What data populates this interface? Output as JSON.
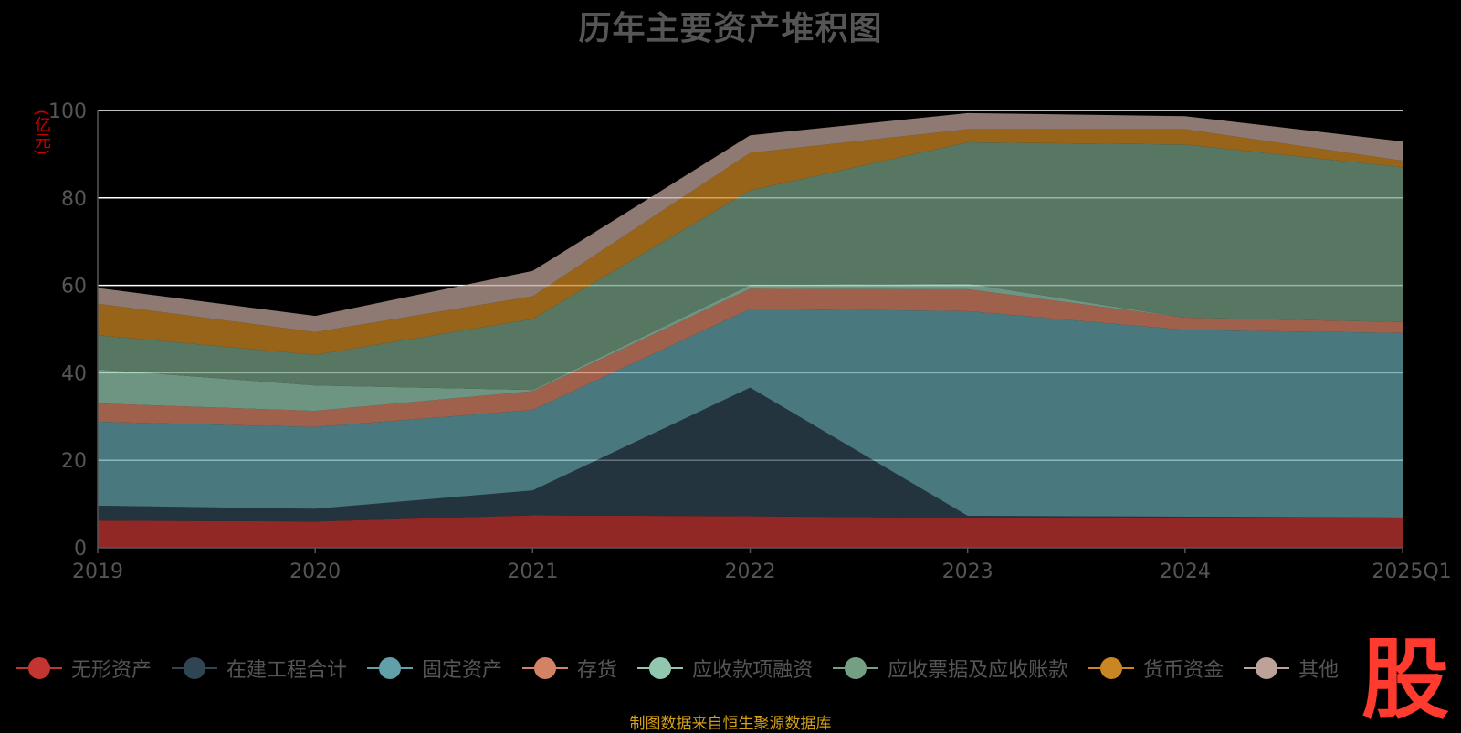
{
  "title": "历年主要资产堆积图",
  "unit_label": "(亿元)",
  "source_note": "制图数据来自恒生聚源数据库",
  "logo_text": "股",
  "chart_data": {
    "type": "area",
    "stacked": true,
    "title": "历年主要资产堆积图",
    "ylabel": "(亿元)",
    "x": [
      "2019",
      "2020",
      "2021",
      "2022",
      "2023",
      "2024",
      "2025Q1"
    ],
    "ylim": [
      0,
      100
    ],
    "yticks": [
      0,
      20,
      40,
      60,
      80,
      100
    ],
    "grid": true,
    "legend_position": "bottom",
    "series": [
      {
        "name": "无形资产",
        "color": "#c23531",
        "values": [
          6.2,
          6.0,
          7.4,
          7.2,
          6.8,
          6.7,
          6.7
        ]
      },
      {
        "name": "在建工程合计",
        "color": "#2f4554",
        "values": [
          3.4,
          2.9,
          5.7,
          29.4,
          0.5,
          0.4,
          0.2
        ]
      },
      {
        "name": "固定资产",
        "color": "#61a0a8",
        "values": [
          19.2,
          18.7,
          18.4,
          18.0,
          46.8,
          42.7,
          42.2
        ]
      },
      {
        "name": "存货",
        "color": "#d48265",
        "values": [
          4.2,
          3.7,
          4.3,
          4.6,
          5.0,
          2.8,
          2.5
        ]
      },
      {
        "name": "应收款项融资",
        "color": "#91c7ae",
        "values": [
          7.8,
          5.8,
          0.3,
          0.9,
          1.3,
          0.0,
          0.0
        ]
      },
      {
        "name": "应收票据及应收账款",
        "color": "#749f83",
        "values": [
          7.8,
          7.0,
          16.2,
          21.6,
          32.3,
          39.6,
          35.4
        ]
      },
      {
        "name": "货币资金",
        "color": "#ca8622",
        "values": [
          7.2,
          5.2,
          5.2,
          8.6,
          3.0,
          3.5,
          1.5
        ]
      },
      {
        "name": "其他",
        "color": "#bda29a",
        "values": [
          3.6,
          3.7,
          5.8,
          4.0,
          3.7,
          3.0,
          4.4
        ]
      }
    ]
  }
}
